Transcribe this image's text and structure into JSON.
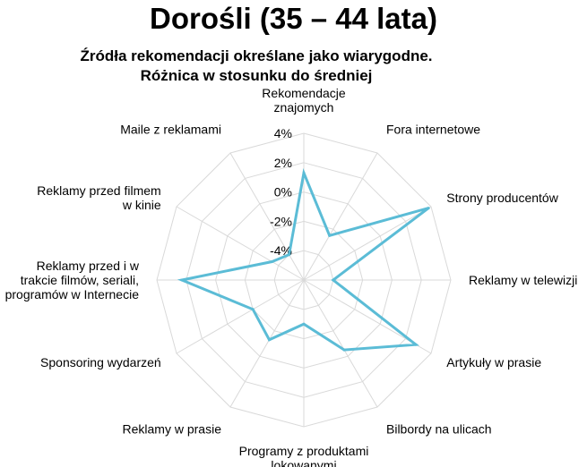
{
  "chart_data": {
    "type": "radar",
    "title": "Dorośli (35 – 44 lata)",
    "subtitle_lines": [
      "Źródła rekomendacji określane jako wiarygodne.",
      "Różnica w stosunku do średniej"
    ],
    "radial_ticks": [
      "4%",
      "2%",
      "0%",
      "-2%",
      "-4%"
    ],
    "rmin": -6,
    "rmax": 4,
    "series_color": "#5bbcd6",
    "grid_color": "#d9d9d9",
    "categories": [
      {
        "label": [
          "Rekomendacje",
          "znajomych"
        ],
        "value": 1.3
      },
      {
        "label": [
          "Fora internetowe"
        ],
        "value": -2.5
      },
      {
        "label": [
          "Strony producentów"
        ],
        "value": 3.8
      },
      {
        "label": [
          "Reklamy w telewizji"
        ],
        "value": -4.0
      },
      {
        "label": [
          "Artykuły w prasie"
        ],
        "value": 2.8
      },
      {
        "label": [
          "Bilbordy na ulicach"
        ],
        "value": -0.5
      },
      {
        "label": [
          "Programy z produktami",
          "lokowanymi"
        ],
        "value": -3.0
      },
      {
        "label": [
          "Reklamy w prasie"
        ],
        "value": -1.3
      },
      {
        "label": [
          "Sponsoring wydarzeń"
        ],
        "value": -2.0
      },
      {
        "label": [
          "Reklamy przed i w",
          "trakcie filmów, seriali,",
          "programów w Internecie"
        ],
        "value": 2.3
      },
      {
        "label": [
          "Reklamy przed filmem",
          "w kinie"
        ],
        "value": -3.5
      },
      {
        "label": [
          "Maile z reklamami"
        ],
        "value": -4.0
      }
    ]
  }
}
